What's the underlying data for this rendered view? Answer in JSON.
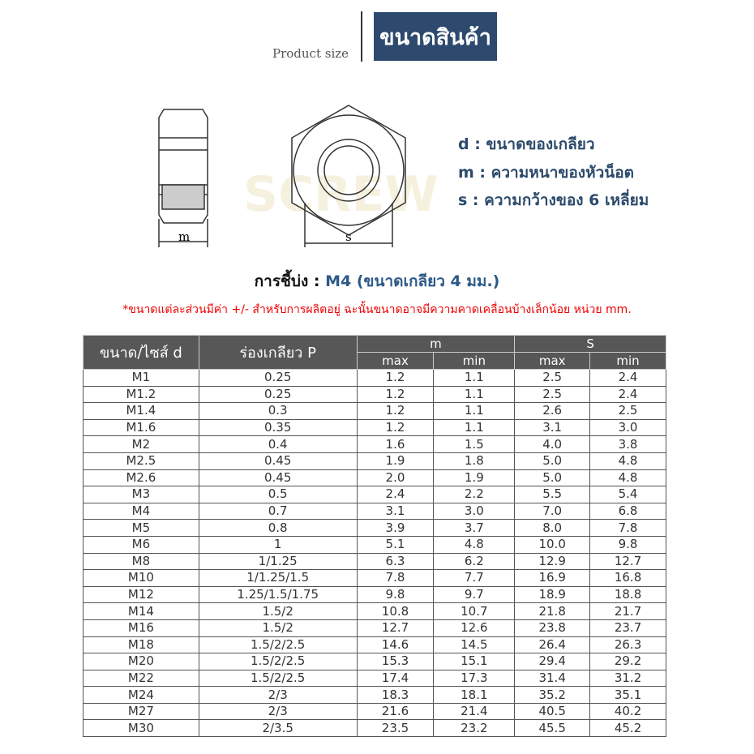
{
  "header": {
    "subtitle": "Product size",
    "title": "ขนาดสินค้า"
  },
  "drawing": {
    "label_m": "m",
    "label_s": "s"
  },
  "legend": [
    {
      "key": "d :",
      "text": "ขนาดของเกลียว"
    },
    {
      "key": "m :",
      "text": "ความหนาของหัวน็อต"
    },
    {
      "key": "s :",
      "text": "ความกว้างของ 6 เหลี่ยม"
    }
  ],
  "example": {
    "label": "การชี้บ่ง :",
    "value": "M4 (ขนาดเกลียว 4 มม.)"
  },
  "note": "*ขนาดแต่ละส่วนมีค่า +/- สำหรับการผลิตอยู่ ฉะนั้นขนาดอาจมีความคาดเคลื่อนบ้างเล็กน้อย หน่วย mm.",
  "watermark": "SCREW N BOLT",
  "table": {
    "headers": {
      "size": "ขนาด/ไซส์ d",
      "pitch": "ร่องเกลียว P",
      "m": "m",
      "s": "S",
      "max": "max",
      "min": "min"
    },
    "rows": [
      [
        "M1",
        "0.25",
        "1.2",
        "1.1",
        "2.5",
        "2.4"
      ],
      [
        "M1.2",
        "0.25",
        "1.2",
        "1.1",
        "2.5",
        "2.4"
      ],
      [
        "M1.4",
        "0.3",
        "1.2",
        "1.1",
        "2.6",
        "2.5"
      ],
      [
        "M1.6",
        "0.35",
        "1.2",
        "1.1",
        "3.1",
        "3.0"
      ],
      [
        "M2",
        "0.4",
        "1.6",
        "1.5",
        "4.0",
        "3.8"
      ],
      [
        "M2.5",
        "0.45",
        "1.9",
        "1.8",
        "5.0",
        "4.8"
      ],
      [
        "M2.6",
        "0.45",
        "2.0",
        "1.9",
        "5.0",
        "4.8"
      ],
      [
        "M3",
        "0.5",
        "2.4",
        "2.2",
        "5.5",
        "5.4"
      ],
      [
        "M4",
        "0.7",
        "3.1",
        "3.0",
        "7.0",
        "6.8"
      ],
      [
        "M5",
        "0.8",
        "3.9",
        "3.7",
        "8.0",
        "7.8"
      ],
      [
        "M6",
        "1",
        "5.1",
        "4.8",
        "10.0",
        "9.8"
      ],
      [
        "M8",
        "1/1.25",
        "6.3",
        "6.2",
        "12.9",
        "12.7"
      ],
      [
        "M10",
        "1/1.25/1.5",
        "7.8",
        "7.7",
        "16.9",
        "16.8"
      ],
      [
        "M12",
        "1.25/1.5/1.75",
        "9.8",
        "9.7",
        "18.9",
        "18.8"
      ],
      [
        "M14",
        "1.5/2",
        "10.8",
        "10.7",
        "21.8",
        "21.7"
      ],
      [
        "M16",
        "1.5/2",
        "12.7",
        "12.6",
        "23.8",
        "23.7"
      ],
      [
        "M18",
        "1.5/2/2.5",
        "14.6",
        "14.5",
        "26.4",
        "26.3"
      ],
      [
        "M20",
        "1.5/2/2.5",
        "15.3",
        "15.1",
        "29.4",
        "29.2"
      ],
      [
        "M22",
        "1.5/2/2.5",
        "17.4",
        "17.3",
        "31.4",
        "31.2"
      ],
      [
        "M24",
        "2/3",
        "18.3",
        "18.1",
        "35.2",
        "35.1"
      ],
      [
        "M27",
        "2/3",
        "21.6",
        "21.4",
        "40.5",
        "40.2"
      ],
      [
        "M30",
        "2/3.5",
        "23.5",
        "23.2",
        "45.5",
        "45.2"
      ]
    ]
  }
}
